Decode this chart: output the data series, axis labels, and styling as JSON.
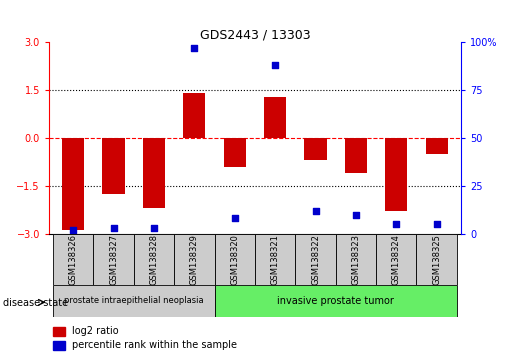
{
  "title": "GDS2443 / 13303",
  "samples": [
    "GSM138326",
    "GSM138327",
    "GSM138328",
    "GSM138329",
    "GSM138320",
    "GSM138321",
    "GSM138322",
    "GSM138323",
    "GSM138324",
    "GSM138325"
  ],
  "log2_ratio": [
    -2.9,
    -1.75,
    -2.2,
    1.4,
    -0.9,
    1.3,
    -0.7,
    -1.1,
    -2.3,
    -0.5
  ],
  "percentile": [
    2,
    3,
    3,
    97,
    8,
    88,
    12,
    10,
    5,
    5
  ],
  "bar_color": "#cc0000",
  "dot_color": "#0000cc",
  "ylim": [
    -3,
    3
  ],
  "y2lim": [
    0,
    100
  ],
  "yticks_left": [
    -3,
    -1.5,
    0,
    1.5,
    3
  ],
  "yticks_right": [
    0,
    25,
    50,
    75,
    100
  ],
  "group1_label": "prostate intraepithelial neoplasia",
  "group2_label": "invasive prostate tumor",
  "group1_indices": [
    0,
    1,
    2,
    3
  ],
  "group2_indices": [
    4,
    5,
    6,
    7,
    8,
    9
  ],
  "disease_state_label": "disease state",
  "legend_bar_label": "log2 ratio",
  "legend_dot_label": "percentile rank within the sample",
  "sample_box_color": "#cccccc",
  "group1_color": "#cccccc",
  "group2_color": "#66ee66",
  "bar_width": 0.55,
  "fig_width": 5.15,
  "fig_height": 3.54,
  "dpi": 100
}
